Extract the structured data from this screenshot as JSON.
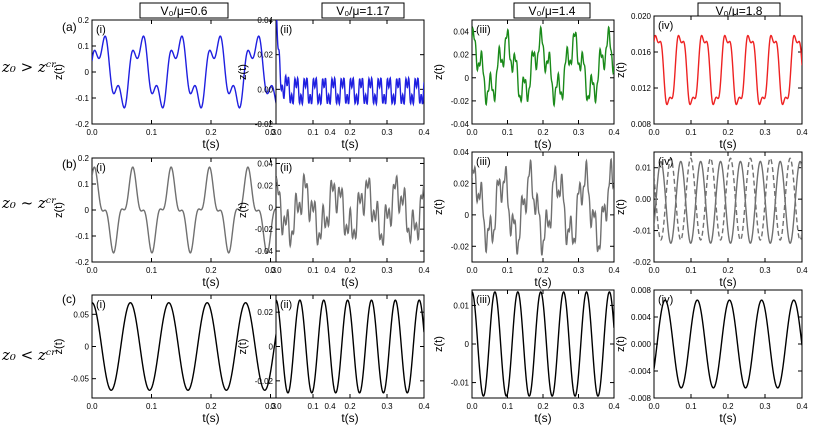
{
  "figure": {
    "column_headers": [
      "V₀/μ=0.6",
      "V₀/μ=1.17",
      "V₀/μ=1.4",
      "V₀/μ=1.8"
    ],
    "rows": [
      {
        "tag": "(a)",
        "label": "z₀ > zᶜʳ"
      },
      {
        "tag": "(b)",
        "label": "z₀ ~ zᶜʳ"
      },
      {
        "tag": "(c)",
        "label": "z₀ < zᶜʳ"
      }
    ],
    "colors": {
      "blue": "#1f1fe0",
      "green": "#1a8a1a",
      "red": "#ee2222",
      "gray": "#707070",
      "black": "#000000"
    }
  },
  "chart_data": [
    {
      "id": "a1",
      "type": "line",
      "panel": "(i)",
      "xlabel": "t(s)",
      "ylabel": "z(t)",
      "xlim": [
        0,
        0.4
      ],
      "ylim": [
        -0.2,
        0.2
      ],
      "xticks": [
        "0.0",
        "0.1",
        "0.2",
        "0.3",
        "0.4"
      ],
      "yticks": [
        "-0.2",
        "-0.1",
        "0",
        "0.1",
        "0.2"
      ],
      "series": [
        {
          "color": "#1f1fe0",
          "dash": false,
          "shape": {
            "kind": "sum",
            "offset": 0,
            "terms": [
              [
                0.11,
                15.5,
                0.0
              ],
              [
                0.05,
                46.5,
                1.0
              ]
            ]
          }
        }
      ]
    },
    {
      "id": "a2",
      "type": "line",
      "panel": "(ii)",
      "xlabel": "t(s)",
      "ylabel": "z(t)",
      "xlim": [
        0,
        0.4
      ],
      "ylim": [
        -0.02,
        0.04
      ],
      "xticks": [
        "0.0",
        "0.1",
        "0.2",
        "0.3",
        "0.4"
      ],
      "yticks": [
        "-0.02",
        "0.00",
        "0.02",
        "0.04"
      ],
      "series": [
        {
          "color": "#1f1fe0",
          "dash": false,
          "shape": {
            "kind": "decay",
            "offset": -0.001,
            "amp0": 0.045,
            "tau": 0.008,
            "terms": [
              [
                0.006,
                40,
                0.3
              ],
              [
                0.004,
                120,
                1.0
              ]
            ]
          }
        }
      ]
    },
    {
      "id": "a3",
      "type": "line",
      "panel": "(iii)",
      "xlabel": "t(s)",
      "ylabel": "z(t)",
      "xlim": [
        0,
        0.4
      ],
      "ylim": [
        -0.04,
        0.05
      ],
      "xticks": [
        "0.0",
        "0.1",
        "0.2",
        "0.3",
        "0.4"
      ],
      "yticks": [
        "-0.04",
        "-0.02",
        "0",
        "0.02",
        "0.04"
      ],
      "series": [
        {
          "color": "#1a8a1a",
          "dash": false,
          "shape": {
            "kind": "sum",
            "offset": 0.008,
            "terms": [
              [
                0.02,
                10.5,
                1.4
              ],
              [
                0.012,
                42,
                0.5
              ],
              [
                0.004,
                120,
                0.2
              ]
            ]
          }
        }
      ]
    },
    {
      "id": "a4",
      "type": "line",
      "panel": "(iv)",
      "xlabel": "t(s)",
      "ylabel": "z(t)",
      "xlim": [
        0,
        0.4
      ],
      "ylim": [
        0.008,
        0.02
      ],
      "xticks": [
        "0.0",
        "0.1",
        "0.2",
        "0.3",
        "0.4"
      ],
      "yticks": [
        "0.008",
        "0.012",
        "0.016",
        "0.020"
      ],
      "series": [
        {
          "color": "#ee2222",
          "dash": false,
          "shape": {
            "kind": "sum",
            "offset": 0.014,
            "terms": [
              [
                0.004,
                16,
                0.6
              ],
              [
                0.0009,
                48,
                1.4
              ]
            ]
          }
        }
      ]
    },
    {
      "id": "b1",
      "type": "line",
      "panel": "(i)",
      "xlabel": "t(s)",
      "ylabel": "z(t)",
      "xlim": [
        0,
        0.4
      ],
      "ylim": [
        -0.2,
        0.2
      ],
      "xticks": [
        "0.0",
        "0.1",
        "0.2",
        "0.3",
        "0.4"
      ],
      "yticks": [
        "-0.2",
        "-0.1",
        "0",
        "0.1",
        "0.2"
      ],
      "series": [
        {
          "color": "#707070",
          "dash": false,
          "shape": {
            "kind": "sum",
            "offset": 0,
            "terms": [
              [
                0.12,
                15.5,
                1.2
              ],
              [
                0.045,
                46.5,
                0.4
              ]
            ]
          }
        }
      ]
    },
    {
      "id": "b2",
      "type": "line",
      "panel": "(ii)",
      "xlabel": "t(s)",
      "ylabel": "z(t)",
      "xlim": [
        0,
        0.4
      ],
      "ylim": [
        -0.05,
        0.045
      ],
      "xticks": [
        "0.0",
        "0.1",
        "0.2",
        "0.3",
        "0.4"
      ],
      "yticks": [
        "-0.04",
        "-0.02",
        "0",
        "0.02",
        "0.04"
      ],
      "series": [
        {
          "color": "#707070",
          "dash": false,
          "shape": {
            "kind": "sum",
            "offset": -0.003,
            "terms": [
              [
                0.018,
                12,
                2.0
              ],
              [
                0.012,
                41,
                0.2
              ],
              [
                0.008,
                95,
                1.1
              ]
            ]
          }
        }
      ]
    },
    {
      "id": "b3",
      "type": "line",
      "panel": "(iii)",
      "xlabel": "t(s)",
      "ylabel": "z(t)",
      "xlim": [
        0,
        0.4
      ],
      "ylim": [
        -0.03,
        0.04
      ],
      "xticks": [
        "0.0",
        "0.1",
        "0.2",
        "0.3",
        "0.4"
      ],
      "yticks": [
        "-0.02",
        "0",
        "0.02",
        "0.04"
      ],
      "series": [
        {
          "color": "#707070",
          "dash": false,
          "shape": {
            "kind": "sum",
            "offset": 0.004,
            "terms": [
              [
                0.018,
                13,
                0.8
              ],
              [
                0.01,
                44,
                0.3
              ],
              [
                0.004,
                115,
                1.2
              ]
            ]
          }
        }
      ]
    },
    {
      "id": "b4",
      "type": "line",
      "panel": "(iv)",
      "xlabel": "t(s)",
      "ylabel": "z(t)",
      "xlim": [
        0,
        0.4
      ],
      "ylim": [
        -0.02,
        0.015
      ],
      "xticks": [
        "0.0",
        "0.1",
        "0.2",
        "0.3",
        "0.4"
      ],
      "yticks": [
        "-0.02",
        "-0.01",
        "0.00",
        "0.01"
      ],
      "series": [
        {
          "color": "#707070",
          "dash": false,
          "shape": {
            "kind": "sum",
            "offset": -0.001,
            "terms": [
              [
                0.013,
                18.6,
                -0.6
              ]
            ]
          }
        },
        {
          "color": "#707070",
          "dash": true,
          "shape": {
            "kind": "sum",
            "offset": 0.0,
            "terms": [
              [
                0.013,
                18.6,
                2.55
              ]
            ]
          }
        }
      ]
    },
    {
      "id": "c1",
      "type": "line",
      "panel": "(i)",
      "xlabel": "t(s)",
      "ylabel": "z(t)",
      "xlim": [
        0,
        0.4
      ],
      "ylim": [
        -0.08,
        0.08
      ],
      "xticks": [
        "0.0",
        "0.1",
        "0.2",
        "0.3",
        "0.4"
      ],
      "yticks": [
        "-0.05",
        "0",
        "0.05"
      ],
      "series": [
        {
          "color": "#000000",
          "dash": false,
          "shape": {
            "kind": "sum",
            "offset": 0,
            "terms": [
              [
                0.068,
                15.5,
                1.57
              ]
            ]
          }
        }
      ]
    },
    {
      "id": "c2",
      "type": "line",
      "panel": "(ii)",
      "xlabel": "t(s)",
      "ylabel": "z(t)",
      "xlim": [
        0,
        0.4
      ],
      "ylim": [
        -0.03,
        0.03
      ],
      "xticks": [
        "0.0",
        "0.1",
        "0.2",
        "0.3",
        "0.4"
      ],
      "yticks": [
        "-0.02",
        "0",
        "0.02"
      ],
      "series": [
        {
          "color": "#000000",
          "dash": false,
          "shape": {
            "kind": "sum",
            "offset": 0,
            "terms": [
              [
                0.027,
                15.5,
                1.57
              ]
            ]
          }
        }
      ]
    },
    {
      "id": "c3",
      "type": "line",
      "panel": "(iii)",
      "xlabel": "t(s)",
      "ylabel": "z(t)",
      "xlim": [
        0,
        0.4
      ],
      "ylim": [
        -0.014,
        0.014
      ],
      "xticks": [
        "0.0",
        "0.1",
        "0.2",
        "0.3",
        "0.4"
      ],
      "yticks": [
        "-0.01",
        "0",
        "0.01"
      ],
      "series": [
        {
          "color": "#000000",
          "dash": false,
          "shape": {
            "kind": "sum",
            "offset": 0,
            "terms": [
              [
                0.0135,
                15.5,
                1.57
              ]
            ]
          }
        }
      ]
    },
    {
      "id": "c4",
      "type": "line",
      "panel": "(iv)",
      "xlabel": "t(s)",
      "ylabel": "z(t)",
      "xlim": [
        0,
        0.4
      ],
      "ylim": [
        -0.008,
        0.008
      ],
      "xticks": [
        "0.0",
        "0.1",
        "0.2",
        "0.3",
        "0.4"
      ],
      "yticks": [
        "-0.008",
        "-0.004",
        "0.000",
        "0.004",
        "0.008"
      ],
      "series": [
        {
          "color": "#000000",
          "dash": false,
          "shape": {
            "kind": "sum",
            "offset": 0,
            "terms": [
              [
                0.0065,
                11.5,
                -0.6
              ]
            ]
          }
        }
      ]
    }
  ]
}
